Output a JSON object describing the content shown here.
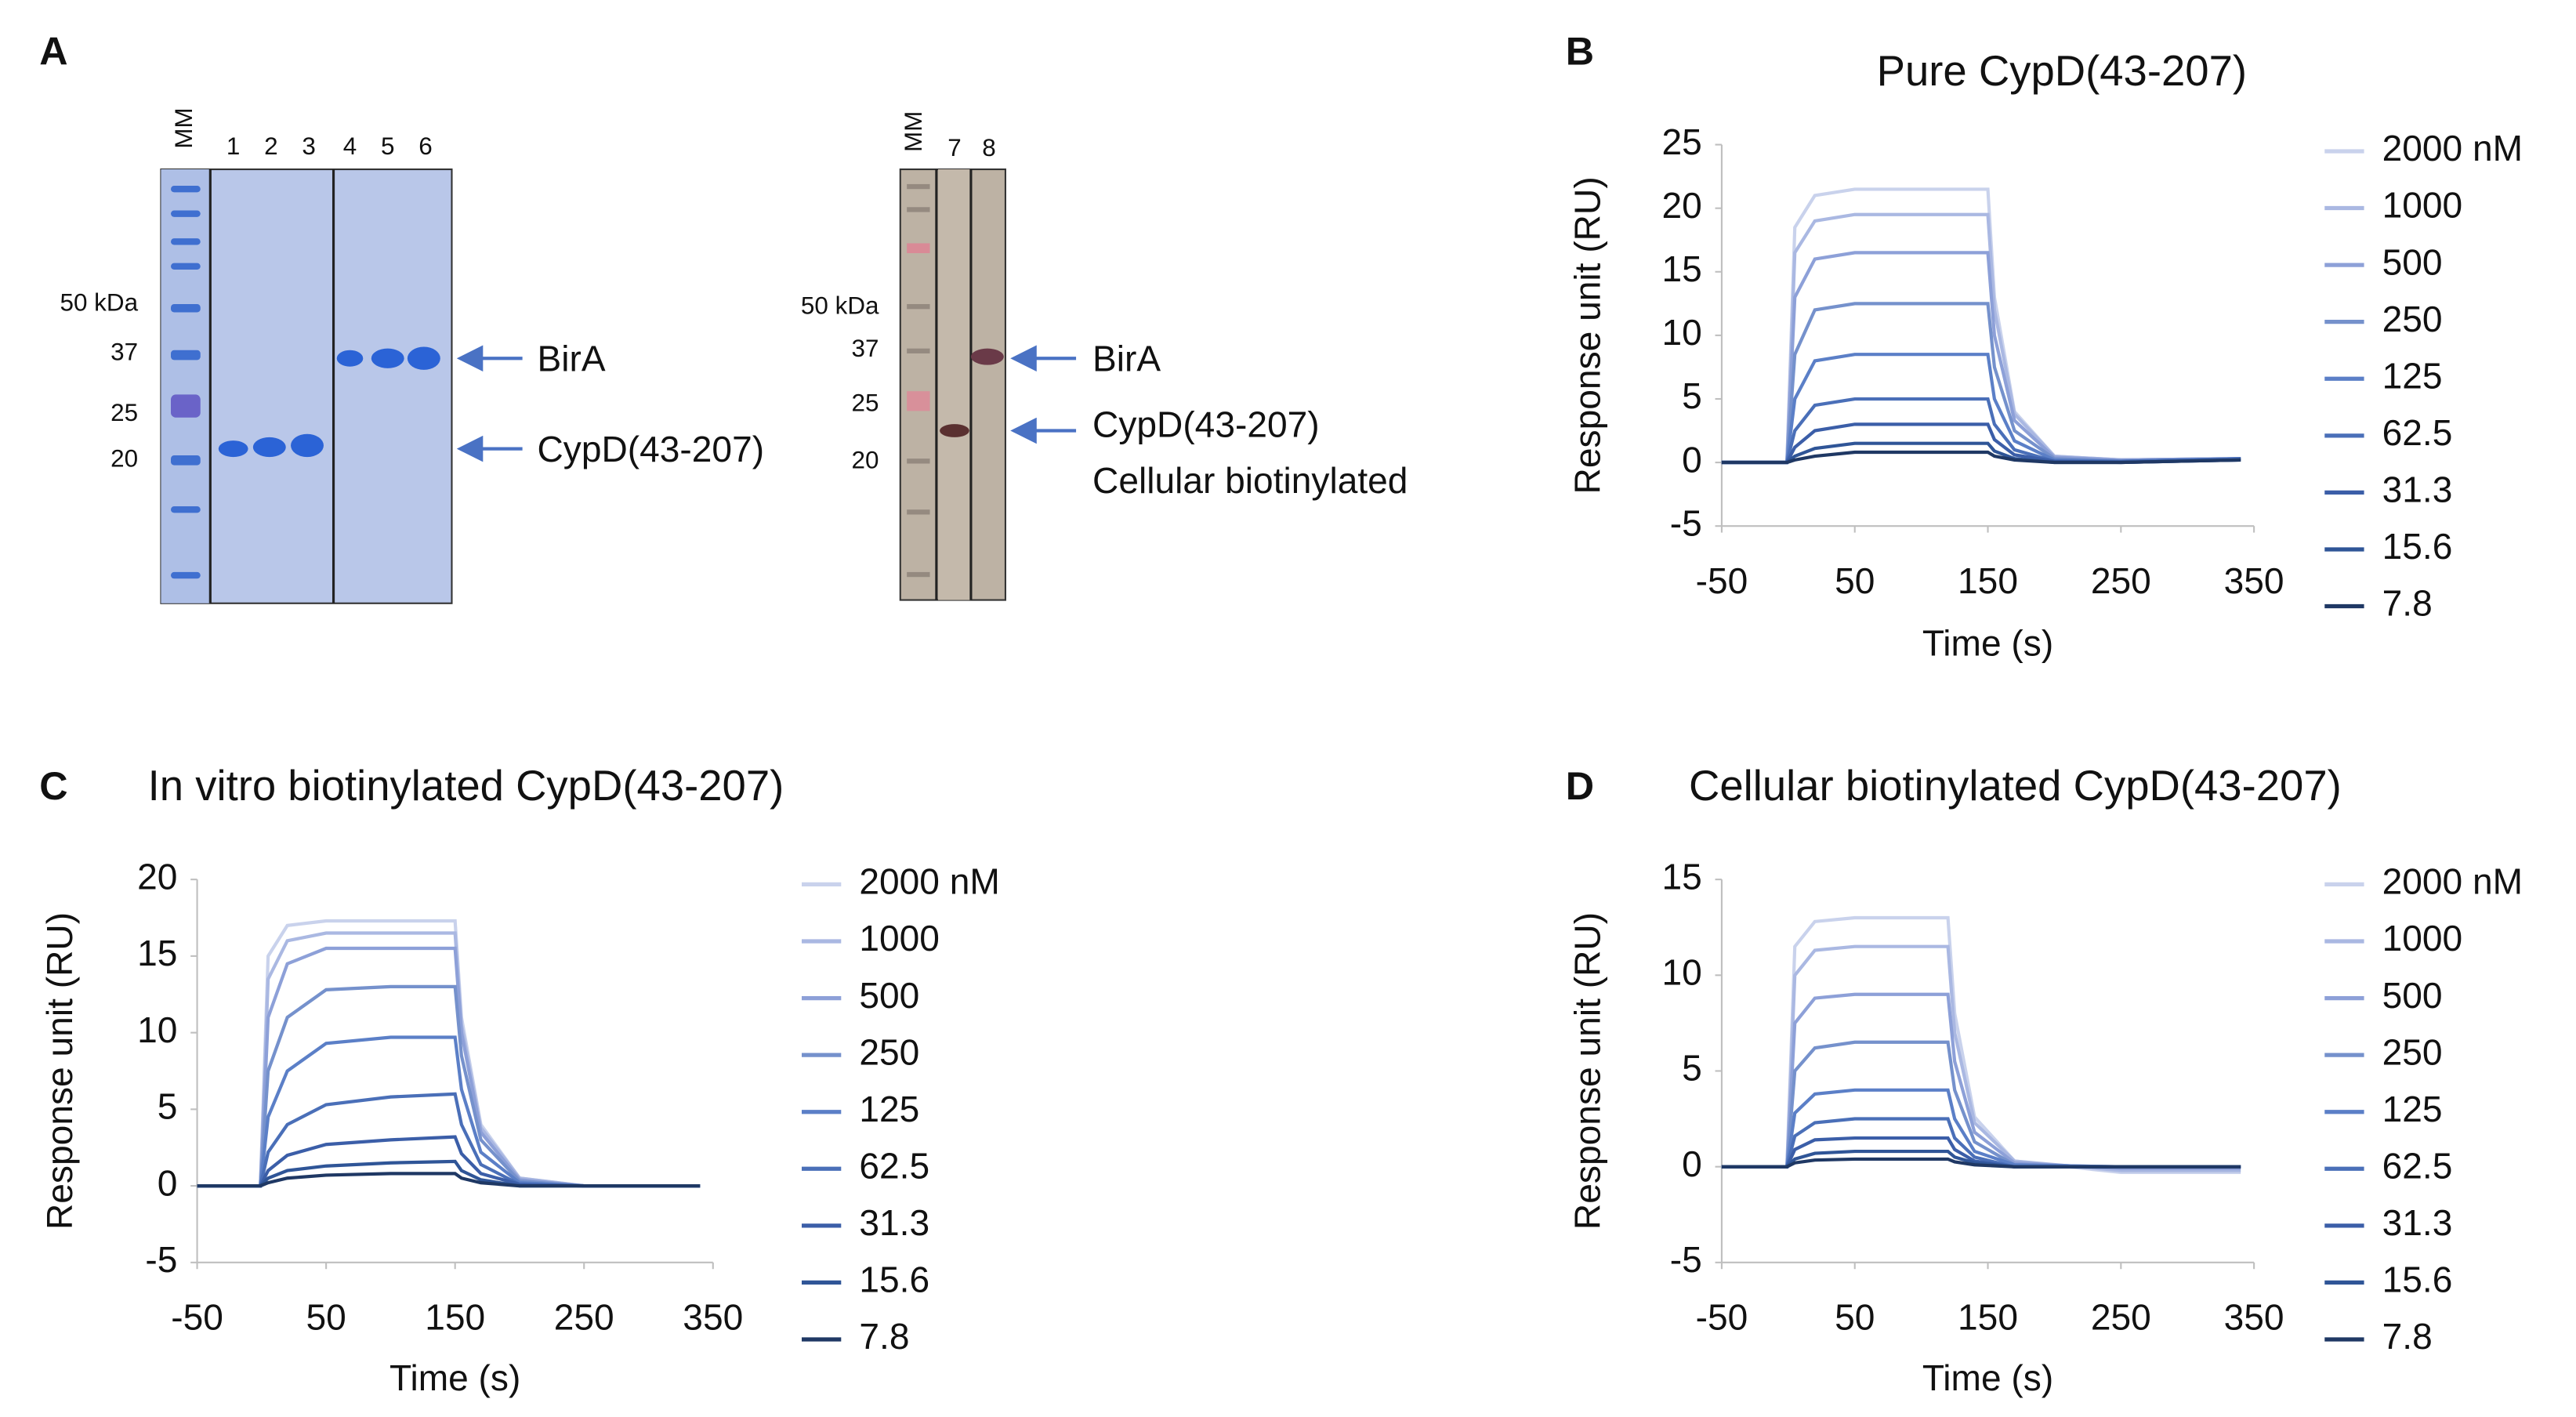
{
  "panel_labels": [
    "A",
    "B",
    "C",
    "D"
  ],
  "gels": [
    {
      "lane_labels": [
        "MM",
        "1",
        "2",
        "3",
        "4",
        "5",
        "6"
      ],
      "marker_labels": [
        "50 kDa",
        "37",
        "25",
        "20"
      ],
      "band_labels": [
        "BirA",
        "CypD(43-207)"
      ]
    },
    {
      "lane_labels": [
        "MM",
        "7",
        "8"
      ],
      "marker_labels": [
        "50 kDa",
        "37",
        "25",
        "20"
      ],
      "band_labels": [
        "BirA",
        "CypD(43-207)",
        "Cellular biotinylated"
      ]
    }
  ],
  "chart_data": [
    {
      "type": "line",
      "title": "Pure CypD(43-207)",
      "xlabel": "Time (s)",
      "ylabel": "Response unit (RU)",
      "x": [
        -50,
        -1,
        5,
        20,
        50,
        100,
        150,
        155,
        170,
        200,
        250,
        340
      ],
      "xlim": [
        -50,
        350
      ],
      "xticks": [
        -50,
        50,
        150,
        250,
        350
      ],
      "ylim": [
        -5,
        25
      ],
      "yticks": [
        -5,
        0,
        5,
        10,
        15,
        20,
        25
      ],
      "series": [
        {
          "name": "2000 nM",
          "color": "#c9d2ec",
          "values": [
            0,
            0,
            18.5,
            21,
            21.5,
            21.5,
            21.5,
            13,
            4,
            0.5,
            0.2,
            0.3
          ]
        },
        {
          "name": "1000",
          "color": "#aab8e2",
          "values": [
            0,
            0,
            16.5,
            19,
            19.5,
            19.5,
            19.5,
            12,
            3.8,
            0.5,
            0.2,
            0.3
          ]
        },
        {
          "name": "500",
          "color": "#8da0d8",
          "values": [
            0,
            0,
            13,
            16,
            16.5,
            16.5,
            16.5,
            10,
            3.3,
            0.4,
            0.2,
            0.3
          ]
        },
        {
          "name": "250",
          "color": "#7591cc",
          "values": [
            0,
            0,
            8.5,
            12,
            12.5,
            12.5,
            12.5,
            7.5,
            2.5,
            0.3,
            0.1,
            0.3
          ]
        },
        {
          "name": "125",
          "color": "#5b7fc7",
          "values": [
            0,
            0,
            5,
            8,
            8.5,
            8.5,
            8.5,
            5,
            1.7,
            0.2,
            0.1,
            0.3
          ]
        },
        {
          "name": "62.5",
          "color": "#4a6fb8",
          "values": [
            0,
            0,
            2.5,
            4.5,
            5,
            5,
            5,
            3,
            1,
            0.1,
            0.1,
            0.3
          ]
        },
        {
          "name": "31.3",
          "color": "#3b5ea8",
          "values": [
            0,
            0,
            1.2,
            2.5,
            3,
            3,
            3,
            1.8,
            0.6,
            0.1,
            0,
            0.2
          ]
        },
        {
          "name": "15.6",
          "color": "#2f5597",
          "values": [
            0,
            0,
            0.5,
            1.1,
            1.5,
            1.5,
            1.5,
            0.9,
            0.3,
            0,
            0,
            0.2
          ]
        },
        {
          "name": "7.8",
          "color": "#1f3864",
          "values": [
            0,
            0,
            0.2,
            0.5,
            0.8,
            0.8,
            0.8,
            0.5,
            0.2,
            0,
            0,
            0.2
          ]
        }
      ]
    },
    {
      "type": "line",
      "title": "In vitro biotinylated CypD(43-207)",
      "xlabel": "Time (s)",
      "ylabel": "Response unit (RU)",
      "x": [
        -50,
        -1,
        5,
        20,
        50,
        100,
        150,
        155,
        170,
        200,
        250,
        340
      ],
      "xlim": [
        -50,
        350
      ],
      "xticks": [
        -50,
        50,
        150,
        250,
        350
      ],
      "ylim": [
        -5,
        20
      ],
      "yticks": [
        -5,
        0,
        5,
        10,
        15,
        20
      ],
      "series": [
        {
          "name": "2000 nM",
          "color": "#c9d2ec",
          "values": [
            0,
            0,
            15,
            17,
            17.3,
            17.3,
            17.3,
            11,
            4,
            0.5,
            0,
            0
          ]
        },
        {
          "name": "1000",
          "color": "#aab8e2",
          "values": [
            0,
            0,
            13.5,
            16,
            16.5,
            16.5,
            16.5,
            10.5,
            3.8,
            0.5,
            0,
            0
          ]
        },
        {
          "name": "500",
          "color": "#8da0d8",
          "values": [
            0,
            0,
            11,
            14.5,
            15.5,
            15.5,
            15.5,
            10,
            3.5,
            0.4,
            0,
            0
          ]
        },
        {
          "name": "250",
          "color": "#7591cc",
          "values": [
            0,
            0,
            7.5,
            11,
            12.8,
            13,
            13,
            8.5,
            3,
            0.3,
            0,
            0
          ]
        },
        {
          "name": "125",
          "color": "#5b7fc7",
          "values": [
            0,
            0,
            4.5,
            7.5,
            9.3,
            9.7,
            9.7,
            6.3,
            2.2,
            0.2,
            0,
            0
          ]
        },
        {
          "name": "62.5",
          "color": "#4a6fb8",
          "values": [
            0,
            0,
            2.2,
            4,
            5.3,
            5.8,
            6,
            4,
            1.4,
            0.1,
            0,
            0
          ]
        },
        {
          "name": "31.3",
          "color": "#3b5ea8",
          "values": [
            0,
            0,
            1,
            2,
            2.7,
            3,
            3.2,
            2.1,
            0.8,
            0.1,
            0,
            0
          ]
        },
        {
          "name": "15.6",
          "color": "#2f5597",
          "values": [
            0,
            0,
            0.5,
            1,
            1.3,
            1.5,
            1.6,
            1,
            0.4,
            0,
            0,
            0
          ]
        },
        {
          "name": "7.8",
          "color": "#1f3864",
          "values": [
            0,
            0,
            0.2,
            0.5,
            0.7,
            0.8,
            0.8,
            0.5,
            0.2,
            0,
            0,
            0
          ]
        }
      ]
    },
    {
      "type": "line",
      "title": "Cellular biotinylated CypD(43-207)",
      "xlabel": "Time (s)",
      "ylabel": "Response unit (RU)",
      "x": [
        -50,
        -1,
        5,
        20,
        50,
        100,
        120,
        125,
        140,
        170,
        250,
        340
      ],
      "xlim": [
        -50,
        350
      ],
      "xticks": [
        -50,
        50,
        150,
        250,
        350
      ],
      "ylim": [
        -5,
        15
      ],
      "yticks": [
        -5,
        0,
        5,
        10,
        15
      ],
      "series": [
        {
          "name": "2000 nM",
          "color": "#c9d2ec",
          "values": [
            0,
            0,
            11.5,
            12.8,
            13,
            13,
            13,
            8,
            2.6,
            0.3,
            -0.3,
            -0.3
          ]
        },
        {
          "name": "1000",
          "color": "#aab8e2",
          "values": [
            0,
            0,
            10,
            11.3,
            11.5,
            11.5,
            11.5,
            7,
            2.3,
            0.3,
            -0.2,
            -0.2
          ]
        },
        {
          "name": "500",
          "color": "#8da0d8",
          "values": [
            0,
            0,
            7.5,
            8.8,
            9,
            9,
            9,
            5.5,
            1.8,
            0.2,
            -0.1,
            -0.1
          ]
        },
        {
          "name": "250",
          "color": "#7591cc",
          "values": [
            0,
            0,
            5,
            6.2,
            6.5,
            6.5,
            6.5,
            4,
            1.3,
            0.1,
            0,
            0
          ]
        },
        {
          "name": "125",
          "color": "#5b7fc7",
          "values": [
            0,
            0,
            2.8,
            3.8,
            4,
            4,
            4,
            2.5,
            0.8,
            0.1,
            0,
            0
          ]
        },
        {
          "name": "62.5",
          "color": "#4a6fb8",
          "values": [
            0,
            0,
            1.6,
            2.3,
            2.5,
            2.5,
            2.5,
            1.5,
            0.5,
            0,
            0,
            0
          ]
        },
        {
          "name": "31.3",
          "color": "#3b5ea8",
          "values": [
            0,
            0,
            0.9,
            1.4,
            1.5,
            1.5,
            1.5,
            0.9,
            0.3,
            0,
            0,
            0
          ]
        },
        {
          "name": "15.6",
          "color": "#2f5597",
          "values": [
            0,
            0,
            0.4,
            0.7,
            0.8,
            0.8,
            0.8,
            0.5,
            0.2,
            0,
            0,
            0
          ]
        },
        {
          "name": "7.8",
          "color": "#1f3864",
          "values": [
            0,
            0,
            0.2,
            0.35,
            0.4,
            0.4,
            0.4,
            0.25,
            0.1,
            0,
            0,
            0
          ]
        }
      ]
    }
  ]
}
